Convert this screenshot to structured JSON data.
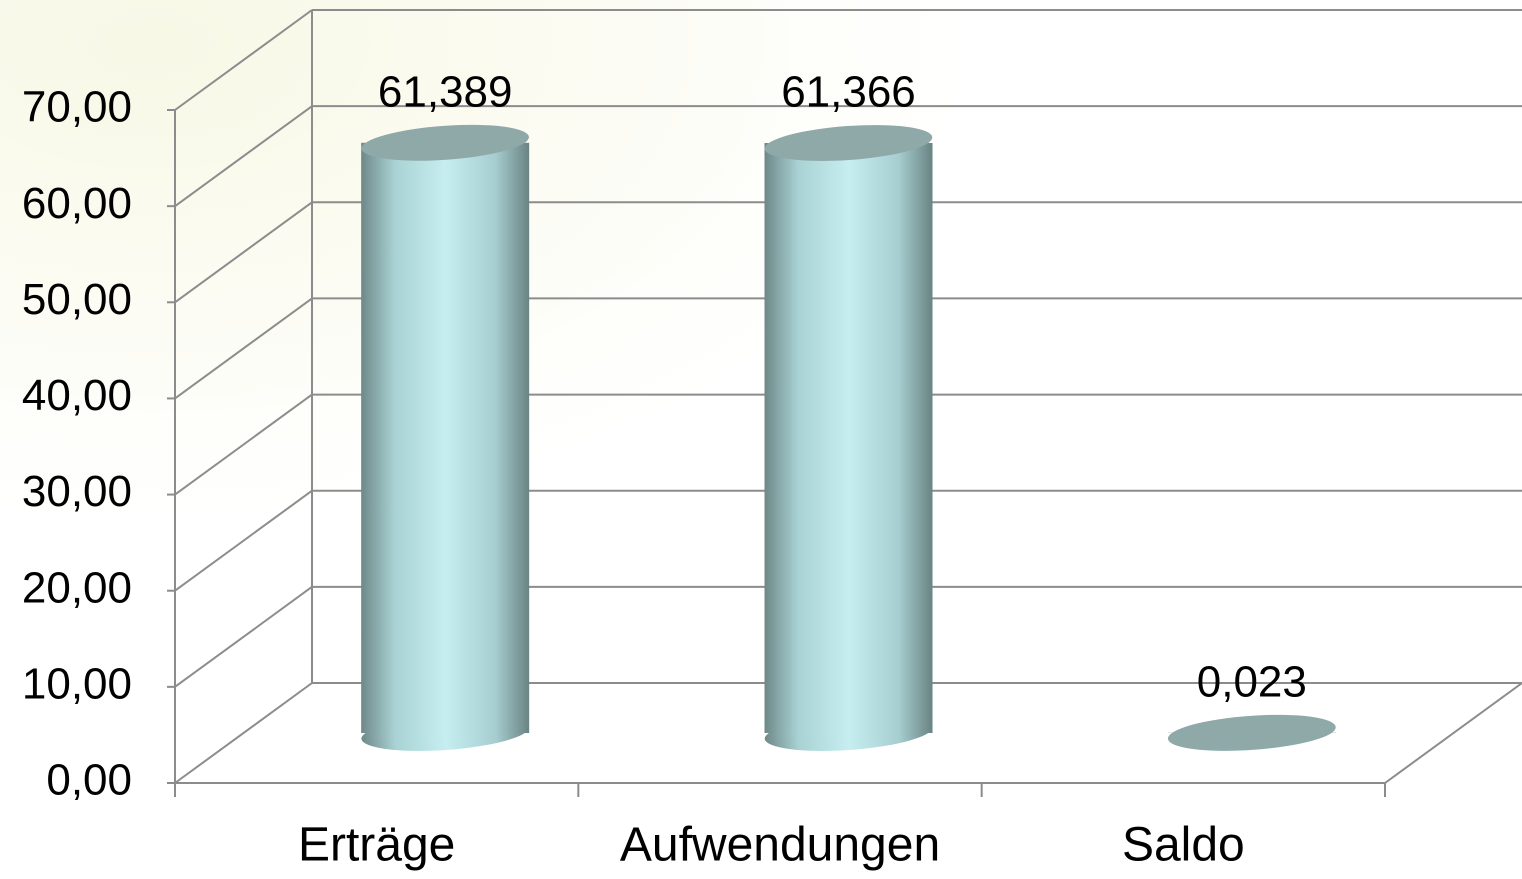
{
  "chart_data": {
    "type": "bar3d",
    "categories": [
      "Erträge",
      "Aufwendungen",
      "Saldo"
    ],
    "values": [
      61.389,
      61.366,
      0.023
    ],
    "value_labels": [
      "61,389",
      "61,366",
      "0,023"
    ],
    "color": "#c6eef1",
    "ylim": [
      0,
      70
    ],
    "yticks": [
      {
        "value": 0,
        "label": "0,00"
      },
      {
        "value": 10,
        "label": "10,00"
      },
      {
        "value": 20,
        "label": "20,00"
      },
      {
        "value": 30,
        "label": "30,00"
      },
      {
        "value": 40,
        "label": "40,00"
      },
      {
        "value": 50,
        "label": "50,00"
      },
      {
        "value": 60,
        "label": "60,00"
      },
      {
        "value": 70,
        "label": "70,00"
      }
    ],
    "grid": true
  }
}
